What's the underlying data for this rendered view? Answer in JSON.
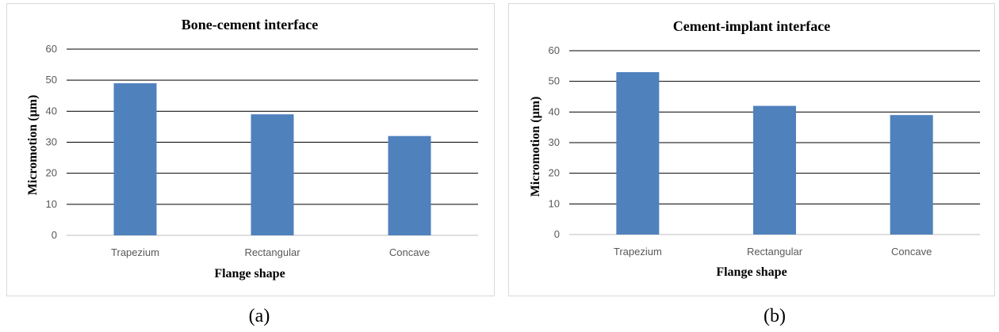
{
  "chart_data": [
    {
      "type": "bar",
      "title": "Bone-cement interface",
      "xlabel": "Flange shape",
      "ylabel": "Micromotion (µm)",
      "categories": [
        "Trapezium",
        "Rectangular",
        "Concave"
      ],
      "values": [
        49,
        39,
        32
      ],
      "ylim": [
        0,
        60
      ],
      "yticks": [
        "0",
        "10",
        "20",
        "30",
        "40",
        "50",
        "60"
      ],
      "grid": true,
      "bar_color": "#4f81bd"
    },
    {
      "type": "bar",
      "title": "Cement-implant interface",
      "xlabel": "Flange shape",
      "ylabel": "Micromotion (µm)",
      "categories": [
        "Trapezium",
        "Rectangular",
        "Concave"
      ],
      "values": [
        53,
        42,
        39
      ],
      "ylim": [
        0,
        60
      ],
      "yticks": [
        "0",
        "10",
        "20",
        "30",
        "40",
        "50",
        "60"
      ],
      "grid": true,
      "bar_color": "#4f81bd"
    }
  ],
  "captions": [
    "(a)",
    "(b)"
  ]
}
